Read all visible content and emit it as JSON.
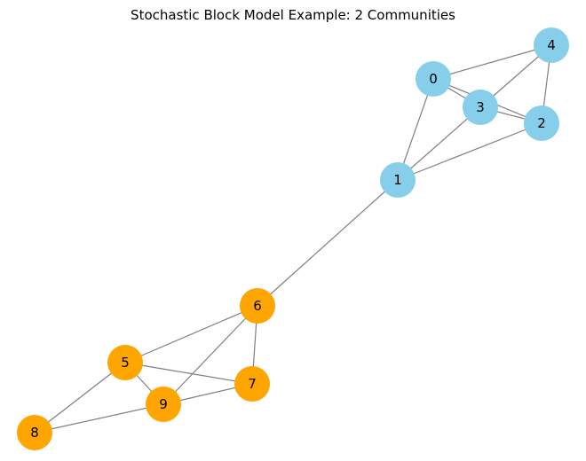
{
  "title": "Stochastic Block Model Example: 2 Communities",
  "colors": {
    "community_0": "#87ceeb",
    "community_1": "#ffa500",
    "edge": "#808080",
    "label": "#000000"
  },
  "graph": {
    "nodes": [
      {
        "id": "0",
        "community": 0
      },
      {
        "id": "1",
        "community": 0
      },
      {
        "id": "2",
        "community": 0
      },
      {
        "id": "3",
        "community": 0
      },
      {
        "id": "4",
        "community": 0
      },
      {
        "id": "5",
        "community": 1
      },
      {
        "id": "6",
        "community": 1
      },
      {
        "id": "7",
        "community": 1
      },
      {
        "id": "8",
        "community": 1
      },
      {
        "id": "9",
        "community": 1
      }
    ],
    "edges": [
      [
        "0",
        "1"
      ],
      [
        "0",
        "2"
      ],
      [
        "0",
        "3"
      ],
      [
        "0",
        "4"
      ],
      [
        "1",
        "2"
      ],
      [
        "1",
        "3"
      ],
      [
        "2",
        "3"
      ],
      [
        "2",
        "4"
      ],
      [
        "3",
        "4"
      ],
      [
        "1",
        "6"
      ],
      [
        "5",
        "6"
      ],
      [
        "5",
        "7"
      ],
      [
        "5",
        "8"
      ],
      [
        "5",
        "9"
      ],
      [
        "6",
        "7"
      ],
      [
        "6",
        "9"
      ],
      [
        "7",
        "9"
      ],
      [
        "8",
        "9"
      ]
    ]
  }
}
